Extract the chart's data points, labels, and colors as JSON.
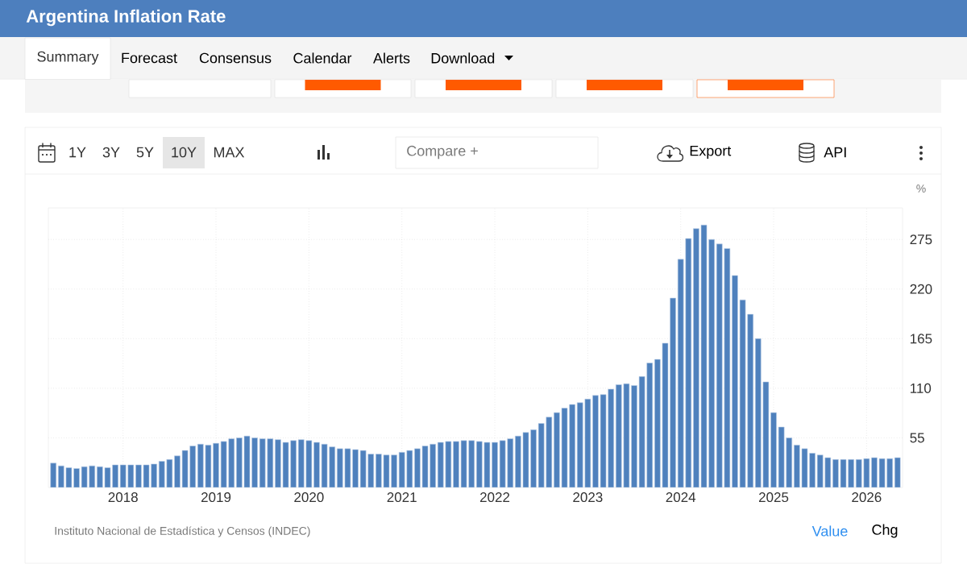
{
  "chart_data": {
    "type": "bar",
    "title": "Argentina Inflation Rate",
    "ylabel": "%",
    "x": [
      "2017-04",
      "2017-05",
      "2017-06",
      "2017-07",
      "2017-08",
      "2017-09",
      "2017-10",
      "2017-11",
      "2017-12",
      "2018-01",
      "2018-02",
      "2018-03",
      "2018-04",
      "2018-05",
      "2018-06",
      "2018-07",
      "2018-08",
      "2018-09",
      "2018-10",
      "2018-11",
      "2018-12",
      "2019-01",
      "2019-02",
      "2019-03",
      "2019-04",
      "2019-05",
      "2019-06",
      "2019-07",
      "2019-08",
      "2019-09",
      "2019-10",
      "2019-11",
      "2019-12",
      "2020-01",
      "2020-02",
      "2020-03",
      "2020-04",
      "2020-05",
      "2020-06",
      "2020-07",
      "2020-08",
      "2020-09",
      "2020-10",
      "2020-11",
      "2020-12",
      "2021-01",
      "2021-02",
      "2021-03",
      "2021-04",
      "2021-05",
      "2021-06",
      "2021-07",
      "2021-08",
      "2021-09",
      "2021-10",
      "2021-11",
      "2021-12",
      "2022-01",
      "2022-02",
      "2022-03",
      "2022-04",
      "2022-05",
      "2022-06",
      "2022-07",
      "2022-08",
      "2022-09",
      "2022-10",
      "2022-11",
      "2022-12",
      "2023-01",
      "2023-02",
      "2023-03",
      "2023-04",
      "2023-05",
      "2023-06",
      "2023-07",
      "2023-08",
      "2023-09",
      "2023-10",
      "2023-11",
      "2023-12",
      "2024-01",
      "2024-02",
      "2024-03",
      "2024-04",
      "2024-05",
      "2024-06",
      "2024-07",
      "2024-08",
      "2024-09",
      "2024-10",
      "2024-11",
      "2024-12",
      "2025-01",
      "2025-02",
      "2025-03",
      "2025-04",
      "2025-05",
      "2025-06",
      "2025-07",
      "2025-08",
      "2025-09",
      "2025-10",
      "2025-11",
      "2025-12",
      "2026-01",
      "2026-02",
      "2026-03",
      "2026-04",
      "2026-05"
    ],
    "values": [
      27,
      24,
      22,
      21,
      23,
      24,
      23,
      22,
      25,
      25,
      25,
      25,
      25,
      26,
      29,
      31,
      35,
      41,
      46,
      48,
      47,
      49,
      51,
      54,
      55,
      57,
      55,
      54,
      54,
      53,
      50,
      52,
      53,
      52,
      50,
      48,
      45,
      43,
      43,
      42,
      41,
      37,
      37,
      36,
      36,
      39,
      41,
      43,
      46,
      48,
      50,
      51,
      51,
      52,
      52,
      51,
      50,
      50,
      52,
      54,
      57,
      61,
      64,
      71,
      78,
      83,
      88,
      92,
      94,
      98,
      102,
      103,
      109,
      114,
      115,
      113,
      123,
      138,
      142,
      160,
      210,
      253,
      276,
      287,
      291,
      275,
      270,
      265,
      235,
      208,
      192,
      165,
      117,
      83,
      67,
      55,
      47,
      43,
      38,
      36,
      33,
      31,
      31,
      31,
      31,
      32,
      33,
      32,
      32,
      33
    ],
    "color": "#4f81bd",
    "xlim": [
      "2017-03-12",
      "2026-05-21"
    ],
    "xticks": [
      {
        "value": "2018-01",
        "label": "2018"
      },
      {
        "value": "2019-01",
        "label": "2019"
      },
      {
        "value": "2020-01",
        "label": "2020"
      },
      {
        "value": "2021-01",
        "label": "2021"
      },
      {
        "value": "2022-01",
        "label": "2022"
      },
      {
        "value": "2023-01",
        "label": "2023"
      },
      {
        "value": "2024-01",
        "label": "2024"
      },
      {
        "value": "2025-01",
        "label": "2025"
      },
      {
        "value": "2026-01",
        "label": "2026"
      }
    ],
    "ylim": [
      0,
      310
    ],
    "yticks": [
      55,
      110,
      165,
      220,
      275
    ],
    "grid": true,
    "annotations": [
      "Instituto Nacional de Estadística y Censos (INDEC)",
      "Summary",
      "Forecast",
      "Consensus",
      "Calendar",
      "Alerts",
      "Download",
      "1Y",
      "3Y",
      "5Y",
      "10Y",
      "MAX",
      "Compare +",
      "Export",
      "API",
      "Value",
      "Chg"
    ]
  }
}
